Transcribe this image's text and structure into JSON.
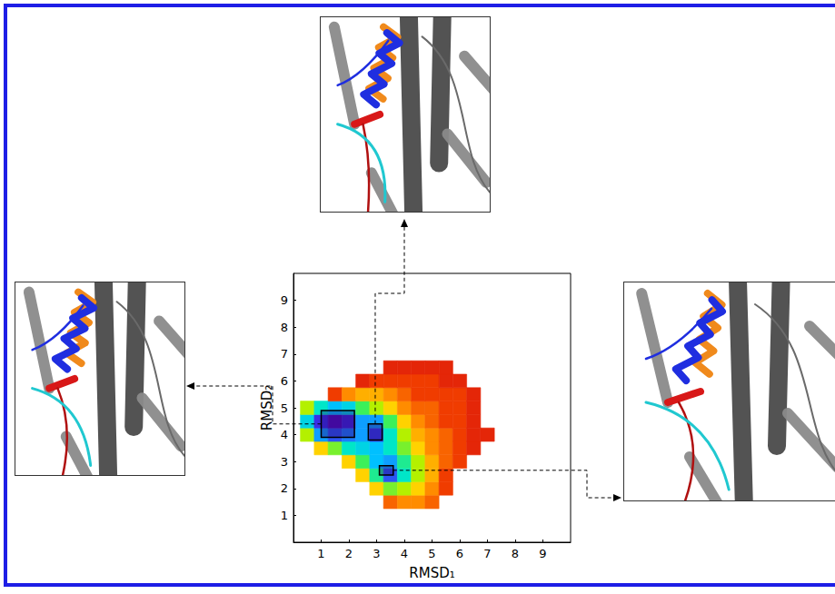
{
  "chart_data": {
    "type": "contour",
    "x_label": "RMSD₁",
    "y_label": "RMSD₂",
    "xlim": [
      0,
      10
    ],
    "ylim": [
      0,
      10
    ],
    "xticks": [
      1,
      2,
      3,
      4,
      5,
      6,
      7,
      8,
      9
    ],
    "yticks": [
      1,
      2,
      3,
      4,
      5,
      6,
      7,
      8,
      9
    ],
    "grid": false,
    "x": [
      0.5,
      1,
      1.5,
      2,
      2.5,
      3,
      3.5,
      4,
      4.5,
      5,
      5.5,
      6,
      6.5,
      7
    ],
    "y": [
      1.5,
      2,
      2.5,
      3,
      3.5,
      4,
      4.5,
      5,
      5.5,
      6,
      6.5
    ],
    "z": [
      [
        null,
        null,
        null,
        null,
        null,
        null,
        8.5,
        8,
        8,
        8.5,
        null,
        null,
        null,
        null
      ],
      [
        null,
        null,
        null,
        null,
        null,
        7,
        5.5,
        6,
        7,
        8,
        9,
        null,
        null,
        null
      ],
      [
        null,
        null,
        null,
        null,
        7,
        4.5,
        1.5,
        4,
        6,
        7.5,
        9,
        null,
        null,
        null
      ],
      [
        null,
        null,
        null,
        7,
        5,
        3,
        2.5,
        4.5,
        6,
        7.5,
        8.5,
        9,
        null,
        null
      ],
      [
        null,
        7,
        5.5,
        4,
        3.5,
        3,
        4,
        5.5,
        7,
        8,
        8.5,
        9,
        9.5,
        null
      ],
      [
        6,
        2.5,
        1.5,
        2,
        2.5,
        1.2,
        4,
        6,
        7.5,
        8,
        8.5,
        9,
        9.5,
        9.5
      ],
      [
        3.5,
        1,
        0.3,
        0.8,
        2.5,
        2.5,
        5,
        7,
        8,
        8.5,
        9,
        9,
        9.5,
        null
      ],
      [
        6,
        4,
        3,
        3.5,
        5,
        6,
        7,
        8,
        8.5,
        8.5,
        9,
        9,
        9.5,
        null
      ],
      [
        null,
        null,
        9,
        8,
        7.5,
        7.5,
        8,
        8.5,
        9,
        9,
        9,
        9,
        9.5,
        null
      ],
      [
        null,
        null,
        null,
        null,
        9.5,
        9,
        9,
        9,
        9,
        9,
        9.5,
        9.5,
        null,
        null
      ],
      [
        null,
        null,
        null,
        null,
        null,
        null,
        9.5,
        9.5,
        9.5,
        9.5,
        9.5,
        null,
        null,
        null
      ]
    ],
    "zlim": [
      0,
      10
    ],
    "regions": [
      {
        "x": [
          1,
          2.2
        ],
        "y": [
          3.9,
          4.9
        ]
      },
      {
        "x": [
          2.7,
          3.2
        ],
        "y": [
          3.8,
          4.4
        ]
      },
      {
        "x": [
          3.1,
          3.6
        ],
        "y": [
          2.5,
          2.85
        ]
      }
    ]
  }
}
